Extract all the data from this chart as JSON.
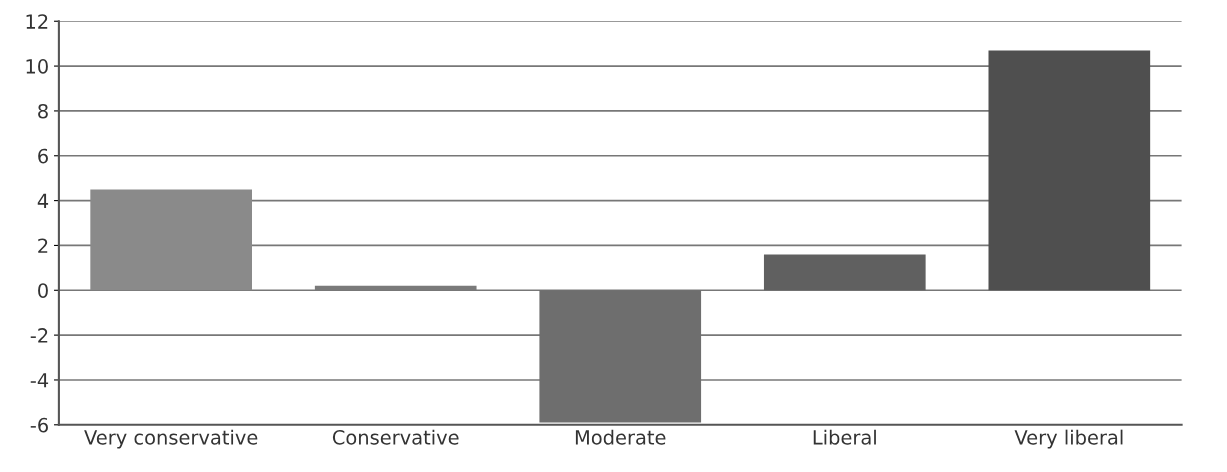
{
  "chart_data": {
    "type": "bar",
    "categories": [
      "Very conservative",
      "Conservative",
      "Moderate",
      "Liberal",
      "Very liberal"
    ],
    "values": [
      4.5,
      0.2,
      -5.9,
      1.6,
      10.7
    ],
    "colors": [
      "#8a8a8a",
      "#7a7a7a",
      "#6e6e6e",
      "#606060",
      "#4f4f4f"
    ],
    "ylim": [
      -6,
      12
    ],
    "yticks": [
      -6,
      -4,
      -2,
      0,
      2,
      4,
      6,
      8,
      10,
      12
    ],
    "grid": "y"
  }
}
